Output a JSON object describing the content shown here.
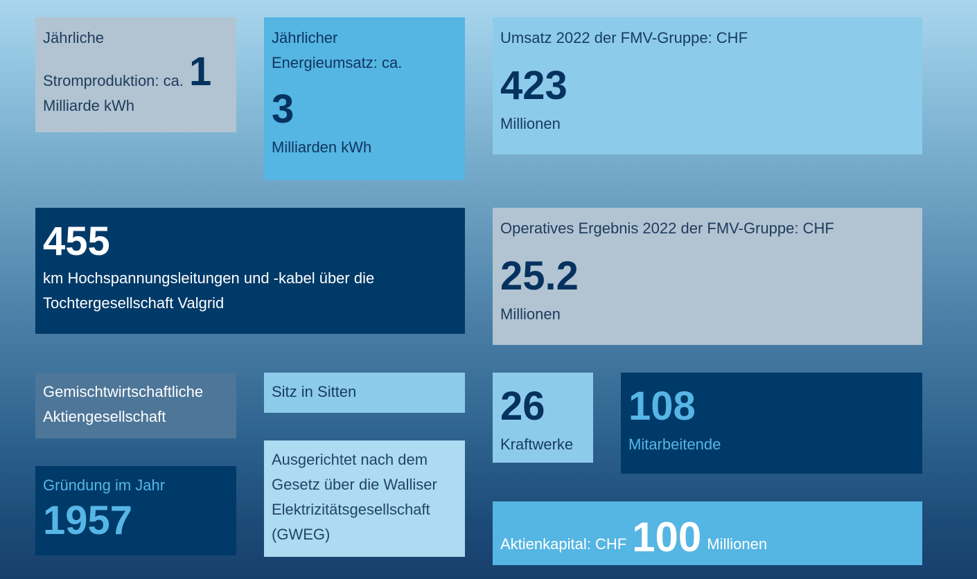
{
  "tiles": {
    "power": {
      "prefix": "Jährliche",
      "label": "Stromproduktion: ca.",
      "value": "1",
      "unit": "Milliarde kWh"
    },
    "energy": {
      "label_line1": "Jährlicher",
      "label_line2": "Energieumsatz: ca.",
      "value": "3",
      "unit": "Milliarden kWh"
    },
    "revenue": {
      "label": "Umsatz 2022 der FMV-Gruppe: CHF",
      "value": "423",
      "unit": "Millionen"
    },
    "lines": {
      "value": "455",
      "label_line1": "km Hochspannungsleitungen und -kabel über die",
      "label_line2": "Tochtergesellschaft Valgrid"
    },
    "operating": {
      "label": "Operatives Ergebnis 2022 der FMV-Gruppe: CHF",
      "value": "25.2",
      "unit": "Millionen"
    },
    "company_type": {
      "line1": "Gemischtwirtschaftliche",
      "line2": "Aktiengesellschaft"
    },
    "seat": {
      "label": "Sitz in Sitten"
    },
    "plants": {
      "value": "26",
      "unit": "Kraftwerke"
    },
    "employees": {
      "value": "108",
      "unit": "Mitarbeitende"
    },
    "founded": {
      "label": "Gründung im Jahr",
      "value": "1957"
    },
    "law": {
      "line1": "Ausgerichtet nach dem",
      "line2": "Gesetz über die Walliser",
      "line3": "Elektrizitätsgesellschaft",
      "line4": "(GWEG)"
    },
    "capital": {
      "label": "Aktienkapital: CHF",
      "value": "100",
      "unit": "Millionen"
    }
  },
  "colors": {
    "navy": "#003a68",
    "blue": "#55b5e3",
    "light": "#8dcbeb",
    "gray": "#b2c4d2",
    "slate": "#4d7698",
    "pale": "#acdbf2"
  }
}
